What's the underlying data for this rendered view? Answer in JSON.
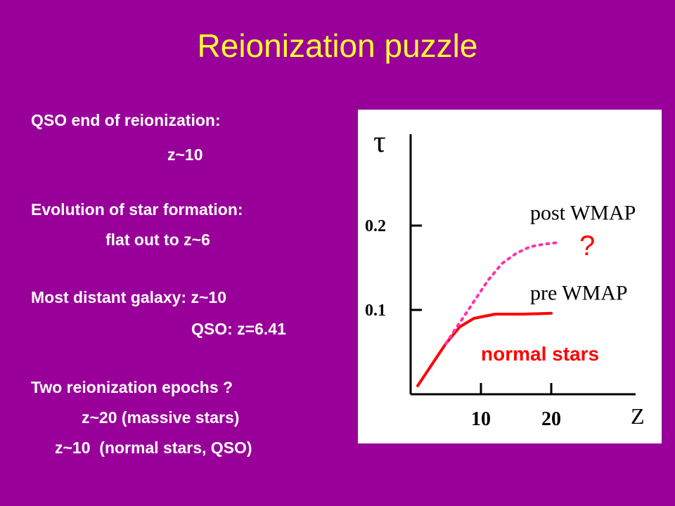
{
  "slide": {
    "title": "Reionization puzzle",
    "bullets": [
      "QSO end of reionization:",
      "z~10",
      "Evolution of star formation:",
      "flat out to z~6",
      "Most distant galaxy: z~10",
      "QSO: z=6.41",
      "Two reionization epochs ?",
      "z~20 (massive stars)",
      "z~10  (normal stars, QSO)"
    ]
  },
  "colors": {
    "background": "#990099",
    "title": "#ffff33",
    "text": "#ffffff",
    "normal_stars": "#ff0000",
    "post_wmap": "#ff33aa"
  },
  "chart_data": {
    "type": "line",
    "ylabel": "τ",
    "xlabel": "Z",
    "yticks": [
      {
        "value": 0.2,
        "label": "0.2"
      },
      {
        "value": 0.1,
        "label": "0.1"
      }
    ],
    "xticks": [
      {
        "value": 10,
        "label": "10"
      },
      {
        "value": 20,
        "label": "20"
      }
    ],
    "xlim": [
      0,
      32
    ],
    "ylim": [
      0,
      0.3
    ],
    "grid": false,
    "series": [
      {
        "name": "normal stars",
        "style": "solid",
        "color": "#ff0000",
        "points": [
          [
            1,
            0.01
          ],
          [
            3,
            0.035
          ],
          [
            5,
            0.06
          ],
          [
            7,
            0.08
          ],
          [
            9,
            0.09
          ],
          [
            12,
            0.095
          ],
          [
            16,
            0.095
          ],
          [
            20,
            0.096
          ]
        ]
      },
      {
        "name": "post WMAP",
        "style": "dotted",
        "color": "#ff33aa",
        "points": [
          [
            5,
            0.06
          ],
          [
            7,
            0.085
          ],
          [
            9,
            0.11
          ],
          [
            11,
            0.135
          ],
          [
            13,
            0.155
          ],
          [
            15,
            0.167
          ],
          [
            17,
            0.175
          ],
          [
            19,
            0.178
          ],
          [
            21,
            0.18
          ]
        ]
      }
    ],
    "annotations": [
      {
        "text": "post WMAP",
        "at": [
          17,
          0.207
        ]
      },
      {
        "text": "?",
        "at": [
          24,
          0.165
        ]
      },
      {
        "text": "pre WMAP",
        "at": [
          17,
          0.112
        ]
      },
      {
        "text": "normal stars",
        "at": [
          10,
          0.04
        ]
      }
    ]
  }
}
